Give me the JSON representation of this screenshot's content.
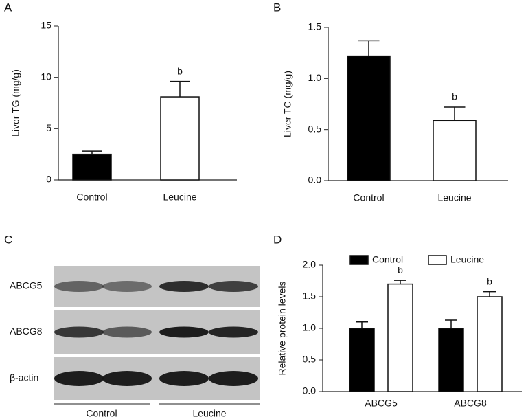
{
  "chart_data": [
    {
      "type": "bar",
      "panel": "A",
      "ylabel": "Liver TG (mg/g)",
      "categories": [
        "Control",
        "Leucine"
      ],
      "values": [
        2.5,
        8.1
      ],
      "errors": [
        0.3,
        1.5
      ],
      "labels": [
        null,
        "b"
      ],
      "colors": [
        "#000000",
        "#ffffff"
      ],
      "ylim": [
        0,
        15
      ],
      "yticks": [
        0,
        5,
        10,
        15
      ]
    },
    {
      "type": "bar",
      "panel": "B",
      "ylabel": "Liver TC (mg/g)",
      "categories": [
        "Control",
        "Leucine"
      ],
      "values": [
        1.22,
        0.59
      ],
      "errors": [
        0.15,
        0.13
      ],
      "labels": [
        null,
        "b"
      ],
      "colors": [
        "#000000",
        "#ffffff"
      ],
      "ylim": [
        0,
        1.5
      ],
      "yticks": [
        {
          "value": 0,
          "label": "0.0"
        },
        0.5,
        {
          "value": 1,
          "label": "1.0"
        },
        1.5
      ]
    },
    {
      "type": "blot",
      "panel": "C",
      "rows": [
        "ABCG5",
        "ABCG8",
        "β-actin"
      ],
      "groups": [
        "Control",
        "Leucine"
      ]
    },
    {
      "type": "grouped_bar",
      "panel": "D",
      "ylabel": "Relative protein levels",
      "categories": [
        "ABCG5",
        "ABCG8"
      ],
      "series": [
        {
          "name": "Control",
          "color": "#000000",
          "values": [
            1.0,
            1.0
          ],
          "errors": [
            0.1,
            0.13
          ],
          "labels": [
            null,
            null
          ]
        },
        {
          "name": "Leucine",
          "color": "#ffffff",
          "values": [
            1.7,
            1.5
          ],
          "errors": [
            0.06,
            0.08
          ],
          "labels": [
            "b",
            "b"
          ]
        }
      ],
      "ylim": [
        0,
        2
      ],
      "yticks": [
        {
          "value": 0,
          "label": "0.0"
        },
        0.5,
        {
          "value": 1,
          "label": "1.0"
        },
        1.5,
        {
          "value": 2,
          "label": "2.0"
        }
      ]
    }
  ]
}
